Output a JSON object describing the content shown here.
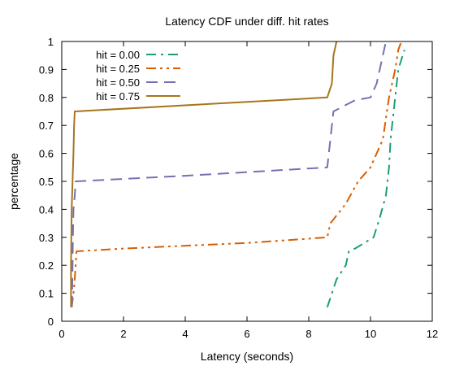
{
  "chart_data": {
    "type": "line",
    "title": "Latency CDF under diff. hit rates",
    "xlabel": "Latency (seconds)",
    "ylabel": "percentage",
    "xlim": [
      0,
      12
    ],
    "ylim": [
      0,
      1
    ],
    "xticks": [
      "0",
      "2",
      "4",
      "6",
      "8",
      "10",
      "12"
    ],
    "yticks": [
      "0",
      "0.1",
      "0.2",
      "0.3",
      "0.4",
      "0.5",
      "0.6",
      "0.7",
      "0.8",
      "0.9",
      "1"
    ],
    "grid": false,
    "legend_position": "top-left",
    "series": [
      {
        "name": "hit = 0.00",
        "color": "#1b9e77",
        "dash": "dash-dot",
        "points": [
          [
            8.6,
            0.05
          ],
          [
            8.9,
            0.15
          ],
          [
            9.2,
            0.2
          ],
          [
            9.3,
            0.25
          ],
          [
            9.5,
            0.26
          ],
          [
            10.1,
            0.3
          ],
          [
            10.3,
            0.37
          ],
          [
            10.5,
            0.45
          ],
          [
            10.6,
            0.55
          ],
          [
            10.65,
            0.65
          ],
          [
            10.7,
            0.7
          ],
          [
            10.8,
            0.8
          ],
          [
            10.9,
            0.9
          ],
          [
            11.1,
            0.97
          ]
        ]
      },
      {
        "name": "hit = 0.25",
        "color": "#d95f02",
        "dash": "dash-dot-dot",
        "points": [
          [
            0.32,
            0.05
          ],
          [
            0.38,
            0.1
          ],
          [
            0.42,
            0.15
          ],
          [
            0.45,
            0.2
          ],
          [
            0.48,
            0.25
          ],
          [
            2.0,
            0.26
          ],
          [
            4.0,
            0.27
          ],
          [
            6.0,
            0.28
          ],
          [
            8.0,
            0.295
          ],
          [
            8.6,
            0.3
          ],
          [
            8.7,
            0.35
          ],
          [
            9.2,
            0.42
          ],
          [
            9.6,
            0.5
          ],
          [
            10.0,
            0.55
          ],
          [
            10.4,
            0.65
          ],
          [
            10.6,
            0.8
          ],
          [
            10.8,
            0.9
          ],
          [
            10.9,
            0.97
          ],
          [
            11.0,
            1.0
          ]
        ]
      },
      {
        "name": "hit = 0.50",
        "color": "#7570b3",
        "dash": "dash",
        "points": [
          [
            0.33,
            0.05
          ],
          [
            0.35,
            0.2
          ],
          [
            0.36,
            0.3
          ],
          [
            0.38,
            0.4
          ],
          [
            0.42,
            0.45
          ],
          [
            0.45,
            0.5
          ],
          [
            4.0,
            0.52
          ],
          [
            8.6,
            0.55
          ],
          [
            8.8,
            0.75
          ],
          [
            9.5,
            0.79
          ],
          [
            10.0,
            0.8
          ],
          [
            10.2,
            0.85
          ],
          [
            10.5,
            1.0
          ]
        ]
      },
      {
        "name": "hit = 0.75",
        "color": "#a6761d",
        "dash": "solid",
        "points": [
          [
            0.3,
            0.05
          ],
          [
            0.3,
            0.2
          ],
          [
            0.32,
            0.4
          ],
          [
            0.35,
            0.5
          ],
          [
            0.38,
            0.6
          ],
          [
            0.4,
            0.7
          ],
          [
            0.42,
            0.75
          ],
          [
            8.6,
            0.8
          ],
          [
            8.75,
            0.85
          ],
          [
            8.8,
            0.95
          ],
          [
            8.9,
            1.0
          ]
        ]
      }
    ]
  }
}
